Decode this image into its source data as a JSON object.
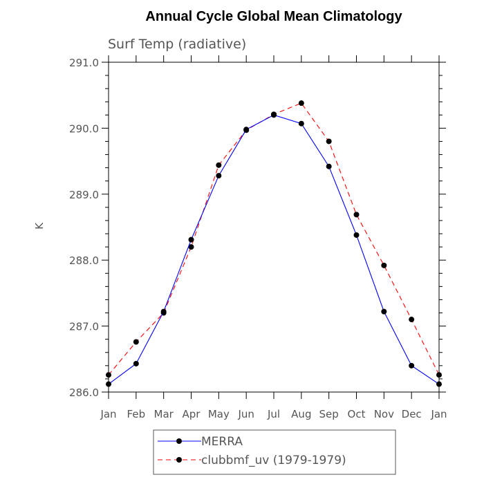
{
  "chart_data": {
    "type": "line",
    "title": "Annual Cycle Global Mean Climatology",
    "subtitle": "Surf Temp (radiative)",
    "xlabel": "",
    "ylabel": "K",
    "categories": [
      "Jan",
      "Feb",
      "Mar",
      "Apr",
      "May",
      "Jun",
      "Jul",
      "Aug",
      "Sep",
      "Oct",
      "Nov",
      "Dec",
      "Jan"
    ],
    "ylim": [
      286.0,
      291.0
    ],
    "y_ticks": [
      "286.0",
      "287.0",
      "288.0",
      "289.0",
      "290.0",
      "291.0"
    ],
    "grid": false,
    "legend_position": "bottom",
    "series": [
      {
        "name": "MERRA",
        "color": "#0000ff",
        "line_style": "solid",
        "marker": "filled-circle",
        "values": [
          286.12,
          286.43,
          287.22,
          288.31,
          289.28,
          289.98,
          290.2,
          290.07,
          289.42,
          288.38,
          287.22,
          286.4,
          286.12
        ]
      },
      {
        "name": "clubbmf_uv (1979-1979)",
        "color": "#ff0000",
        "line_style": "dashed",
        "marker": "filled-circle",
        "values": [
          286.26,
          286.76,
          287.2,
          288.2,
          289.44,
          289.97,
          290.21,
          290.38,
          289.8,
          288.69,
          287.92,
          287.1,
          286.26
        ]
      }
    ]
  }
}
